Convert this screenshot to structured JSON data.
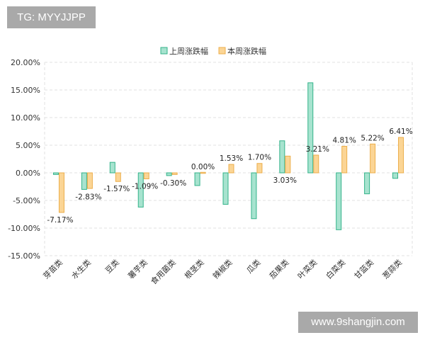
{
  "watermark_top": "TG: MYYJJPP",
  "watermark_bottom": "www.9shangjin.com",
  "colors": {
    "last_fill": "#a7e3cf",
    "last_stroke": "#33b38a",
    "this_fill": "#fbd595",
    "this_stroke": "#ecae4b",
    "grid": "#e2e2e2"
  },
  "chart_data": {
    "type": "bar",
    "title": "",
    "xlabel": "",
    "ylabel": "",
    "ylim": [
      -15,
      20
    ],
    "yticks": [
      20,
      15,
      10,
      5,
      0,
      -5,
      -10,
      -15
    ],
    "ytick_labels": [
      "20.00%",
      "15.00%",
      "10.00%",
      "5.00%",
      "0.00%",
      "-5.00%",
      "-10.00%",
      "-15.00%"
    ],
    "grid": true,
    "legend_position": "top-center",
    "categories": [
      "芽苗类",
      "水生类",
      "豆类",
      "薯芋类",
      "食用菌类",
      "根茎类",
      "辣椒类",
      "瓜类",
      "茄果类",
      "叶菜类",
      "白菜类",
      "甘蓝类",
      "葱蒜类"
    ],
    "series": [
      {
        "name": "上周涨跌幅",
        "values": [
          -0.3,
          -3.0,
          1.9,
          -6.2,
          -0.5,
          -2.3,
          -5.7,
          -8.3,
          5.8,
          16.3,
          -10.3,
          -3.8,
          -1.0
        ]
      },
      {
        "name": "本周涨跌幅",
        "values": [
          -7.17,
          -2.83,
          -1.57,
          -1.09,
          -0.3,
          0.0,
          1.53,
          1.7,
          3.03,
          3.21,
          4.81,
          5.22,
          6.41
        ]
      }
    ],
    "data_labels": [
      "-7.17%",
      "-2.83%",
      "-1.57%",
      "-1.09%",
      "-0.30%",
      "0.00%",
      "1.53%",
      "1.70%",
      "3.03%",
      "3.21%",
      "4.81%",
      "5.22%",
      "6.41%"
    ]
  }
}
